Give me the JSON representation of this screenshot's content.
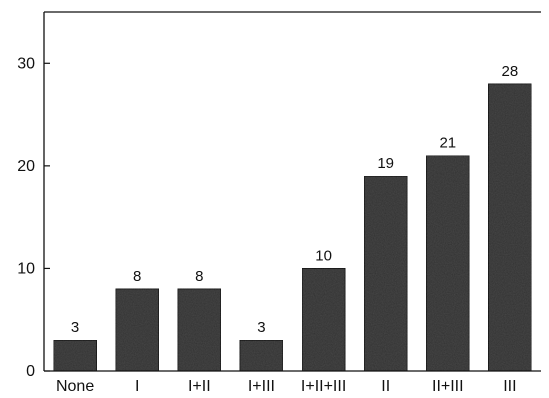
{
  "chart_data": {
    "type": "bar",
    "title": "",
    "xlabel": "",
    "ylabel": "",
    "categories": [
      "None",
      "I",
      "I+II",
      "I+III",
      "I+II+III",
      "II",
      "II+III",
      "III"
    ],
    "values": [
      3,
      8,
      8,
      3,
      10,
      19,
      21,
      28
    ],
    "data_labels": [
      "3",
      "8",
      "8",
      "3",
      "10",
      "19",
      "21",
      "28"
    ],
    "ylim": [
      0,
      35
    ],
    "yticks": [
      0,
      10,
      20,
      30
    ],
    "ytick_labels": [
      "0",
      "10",
      "20",
      "30"
    ],
    "grid": false,
    "legend": "none",
    "bar_color": "#4a4a4a",
    "axis_color": "#111111"
  }
}
